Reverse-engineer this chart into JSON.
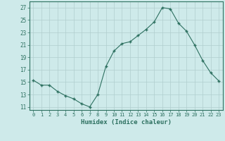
{
  "x": [
    0,
    1,
    2,
    3,
    4,
    5,
    6,
    7,
    8,
    9,
    10,
    11,
    12,
    13,
    14,
    15,
    16,
    17,
    18,
    19,
    20,
    21,
    22,
    23
  ],
  "y": [
    15.3,
    14.5,
    14.5,
    13.5,
    12.8,
    12.3,
    11.5,
    11.0,
    13.0,
    17.5,
    20.0,
    21.2,
    21.5,
    22.5,
    23.5,
    24.7,
    27.0,
    26.8,
    24.5,
    23.2,
    21.0,
    18.5,
    16.5,
    15.2
  ],
  "xlabel": "Humidex (Indice chaleur)",
  "xlim": [
    -0.5,
    23.5
  ],
  "ylim": [
    10.5,
    28.0
  ],
  "yticks": [
    11,
    13,
    15,
    17,
    19,
    21,
    23,
    25,
    27
  ],
  "xticks": [
    0,
    1,
    2,
    3,
    4,
    5,
    6,
    7,
    8,
    9,
    10,
    11,
    12,
    13,
    14,
    15,
    16,
    17,
    18,
    19,
    20,
    21,
    22,
    23
  ],
  "line_color": "#2d7060",
  "marker": "+",
  "bg_color": "#ceeaea",
  "grid_color": "#b0cece",
  "text_color": "#2d7060",
  "spine_color": "#2d7060"
}
